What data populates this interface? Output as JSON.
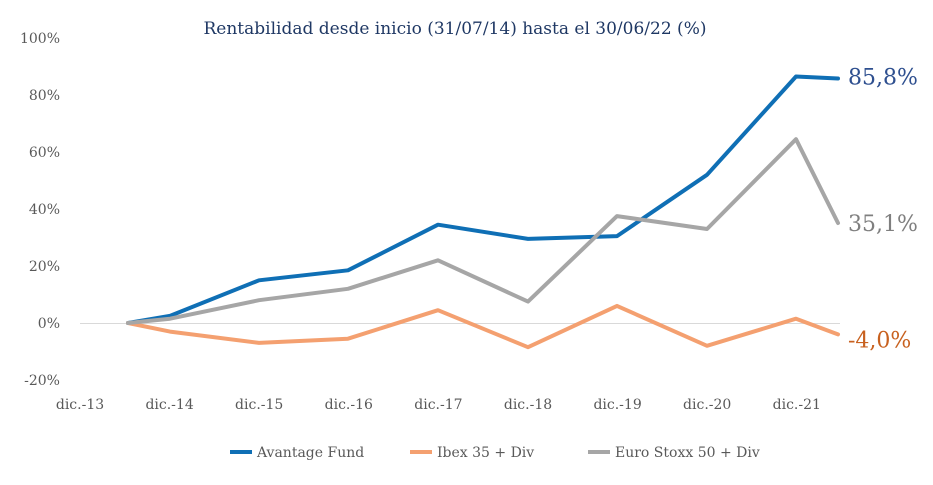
{
  "chart_data": {
    "type": "line",
    "title": "Rentabilidad desde inicio (31/07/14) hasta el 30/06/22 (%)",
    "xlabel": "",
    "ylabel": "",
    "ylim": [
      -20,
      100
    ],
    "yticks": [
      "100%",
      "80%",
      "60%",
      "40%",
      "20%",
      "0%",
      "-20%"
    ],
    "ytick_values": [
      100,
      80,
      60,
      40,
      20,
      0,
      -20
    ],
    "categories": [
      "dic.-13",
      "dic.-14",
      "dic.-15",
      "dic.-16",
      "dic.-17",
      "dic.-18",
      "dic.-19",
      "dic.-20",
      "dic.-21"
    ],
    "x": [
      "jul.-14",
      "dic.-14",
      "dic.-15",
      "dic.-16",
      "dic.-17",
      "dic.-18",
      "dic.-19",
      "dic.-20",
      "dic.-21",
      "jun.-22"
    ],
    "series": [
      {
        "name": "Avantage Fund",
        "color": "#0f6fb5",
        "end_label": "85,8%",
        "end_label_color": "#2e4f8f",
        "values": [
          0,
          2.5,
          15,
          18.5,
          34.5,
          29.5,
          30.5,
          52,
          86.5,
          85.8
        ]
      },
      {
        "name": "Ibex 35 + Div",
        "color": "#f4a070",
        "end_label": "-4,0%",
        "end_label_color": "#c8611f",
        "values": [
          0,
          -3,
          -7,
          -5.5,
          4.5,
          -8.5,
          6,
          -8,
          1.5,
          -4.0
        ]
      },
      {
        "name": "Euro Stoxx 50 + Div",
        "color": "#a6a6a6",
        "end_label": "35,1%",
        "end_label_color": "#7f7f7f",
        "values": [
          0,
          1.5,
          8,
          12,
          22,
          7.5,
          37.5,
          33,
          64.5,
          35.1
        ]
      }
    ],
    "grid": false,
    "legend": "bottom"
  }
}
